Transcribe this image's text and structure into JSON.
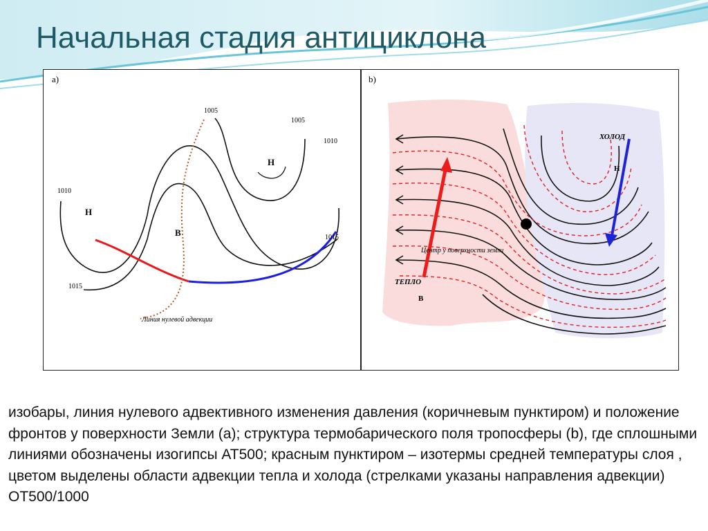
{
  "slide": {
    "title": "Начальная стадия антициклона"
  },
  "panel_a": {
    "label": "a)",
    "isobar_labels": [
      "1005",
      "1005",
      "1010",
      "1010",
      "1015",
      "1015"
    ],
    "pressure_low_1": "Н",
    "pressure_low_2": "Н",
    "pressure_high": "В",
    "zero_advection_label": "Линия нулевой адвекции",
    "colors": {
      "warm_front": "#e8191b",
      "cold_front": "#1c1ee0",
      "zero_advection": "#b85a2a"
    }
  },
  "panel_b": {
    "label": "b)",
    "cold_label": "ХОЛОД",
    "low_label": "Н",
    "warm_label": "ТЕПЛО",
    "high_label": "В",
    "surface_center_label": "Центр у поверхности земли",
    "colors": {
      "warm_area": "#fbdcdc",
      "cold_area": "#e6e6f7",
      "warm_arrow": "#ee1b1b",
      "cold_arrow": "#1d24d8",
      "isotherm": "#e02020"
    }
  },
  "caption": "изобары, линия нулевого адвективного изменения давления (коричневым пунктиром) и положение фронтов у поверхности Земли (а); структура термобарического поля тропосферы (b), где сплошными линиями обозначены изогипсы АТ500; красным пунктиром – изотермы средней температуры слоя , цветом выделены области адвекции тепла и холода (стрелками указаны направления адвекции) ОТ500/1000"
}
